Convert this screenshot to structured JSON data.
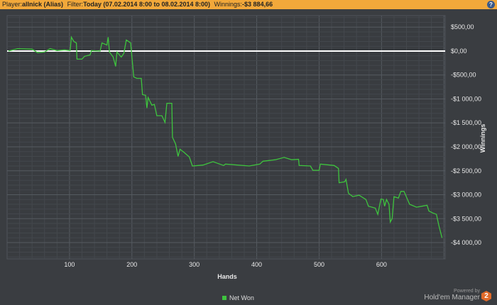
{
  "header": {
    "player_label": "Player:",
    "player": "allnick (Alias)",
    "filter_label": "Filter:",
    "filter": "Today (07.02.2014 8:00 to 08.02.2014 8:00)",
    "winnings_label": "Winnings:",
    "winnings": "-$3 884,66",
    "help": "?"
  },
  "branding": {
    "powered_by": "Powered by",
    "product": "Hold'em Manager",
    "logo_text": "2"
  },
  "colors": {
    "line": "#3ec43e",
    "zero_line": "#ffffff",
    "background": "#3a3d41",
    "header": "#f2a83a"
  },
  "chart_data": {
    "type": "line",
    "xlabel": "Hands",
    "ylabel": "Winnings",
    "xlim": [
      0,
      702
    ],
    "ylim": [
      -4340,
      740
    ],
    "xticks": [
      100,
      200,
      300,
      400,
      500,
      600
    ],
    "yticks": [
      500,
      0,
      -500,
      -1000,
      -1500,
      -2000,
      -2500,
      -3000,
      -3500,
      -4000
    ],
    "ytick_labels": [
      "$500,00",
      "$0,00",
      "-$500,00",
      "-$1 000,00",
      "-$1 500,00",
      "-$2 000,00",
      "-$2 500,00",
      "-$3 000,00",
      "-$3 500,00",
      "-$4 000,00"
    ],
    "grid": true,
    "legend_position": "bottom",
    "series": [
      {
        "name": "Net Won",
        "points": [
          [
            2,
            0
          ],
          [
            17,
            50
          ],
          [
            40,
            40
          ],
          [
            49,
            -35
          ],
          [
            60,
            -20
          ],
          [
            69,
            50
          ],
          [
            80,
            10
          ],
          [
            92,
            25
          ],
          [
            101,
            10
          ],
          [
            103,
            290
          ],
          [
            107,
            200
          ],
          [
            111,
            170
          ],
          [
            112,
            -170
          ],
          [
            120,
            -170
          ],
          [
            124,
            -110
          ],
          [
            133,
            -80
          ],
          [
            135,
            10
          ],
          [
            149,
            0
          ],
          [
            152,
            170
          ],
          [
            160,
            125
          ],
          [
            162,
            290
          ],
          [
            164,
            -20
          ],
          [
            170,
            -125
          ],
          [
            174,
            -320
          ],
          [
            176,
            -20
          ],
          [
            183,
            -125
          ],
          [
            187,
            -50
          ],
          [
            191,
            230
          ],
          [
            198,
            170
          ],
          [
            200,
            -125
          ],
          [
            203,
            -540
          ],
          [
            208,
            -570
          ],
          [
            215,
            -570
          ],
          [
            217,
            -910
          ],
          [
            222,
            -925
          ],
          [
            224,
            -1190
          ],
          [
            226,
            -970
          ],
          [
            232,
            -1130
          ],
          [
            236,
            -1115
          ],
          [
            240,
            -1350
          ],
          [
            248,
            -1350
          ],
          [
            253,
            -1490
          ],
          [
            256,
            -1090
          ],
          [
            264,
            -1090
          ],
          [
            265,
            -1800
          ],
          [
            270,
            -1940
          ],
          [
            274,
            -2200
          ],
          [
            277,
            -2050
          ],
          [
            283,
            -2110
          ],
          [
            292,
            -2210
          ],
          [
            297,
            -2400
          ],
          [
            314,
            -2380
          ],
          [
            330,
            -2310
          ],
          [
            347,
            -2390
          ],
          [
            350,
            -2360
          ],
          [
            388,
            -2400
          ],
          [
            405,
            -2360
          ],
          [
            410,
            -2300
          ],
          [
            430,
            -2270
          ],
          [
            444,
            -2220
          ],
          [
            456,
            -2270
          ],
          [
            467,
            -2260
          ],
          [
            468,
            -2390
          ],
          [
            486,
            -2400
          ],
          [
            490,
            -2490
          ],
          [
            500,
            -2490
          ],
          [
            502,
            -2360
          ],
          [
            524,
            -2390
          ],
          [
            531,
            -2450
          ],
          [
            532,
            -2750
          ],
          [
            541,
            -2730
          ],
          [
            543,
            -2680
          ],
          [
            547,
            -2970
          ],
          [
            554,
            -3040
          ],
          [
            564,
            -3010
          ],
          [
            575,
            -3100
          ],
          [
            579,
            -3240
          ],
          [
            590,
            -3280
          ],
          [
            594,
            -3410
          ],
          [
            599,
            -3090
          ],
          [
            603,
            -3100
          ],
          [
            605,
            -3240
          ],
          [
            608,
            -3100
          ],
          [
            612,
            -3200
          ],
          [
            614,
            -3570
          ],
          [
            617,
            -3500
          ],
          [
            620,
            -3040
          ],
          [
            627,
            -3070
          ],
          [
            631,
            -2930
          ],
          [
            636,
            -2930
          ],
          [
            645,
            -3200
          ],
          [
            656,
            -3260
          ],
          [
            665,
            -3240
          ],
          [
            673,
            -3220
          ],
          [
            676,
            -3340
          ],
          [
            682,
            -3380
          ],
          [
            688,
            -3410
          ],
          [
            692,
            -3650
          ],
          [
            697,
            -3900
          ]
        ]
      }
    ]
  }
}
